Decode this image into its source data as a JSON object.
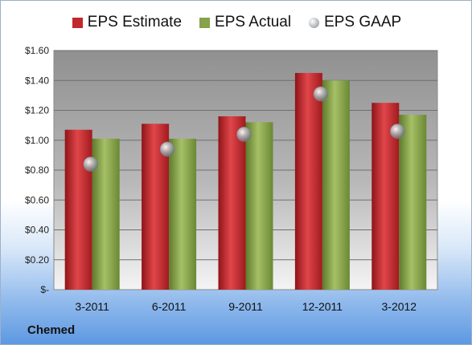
{
  "chart_data": {
    "type": "bar",
    "categories": [
      "3-2011",
      "6-2011",
      "9-2011",
      "12-2011",
      "3-2012"
    ],
    "series": [
      {
        "name": "EPS Estimate",
        "kind": "bar",
        "color": "#c0282c",
        "values": [
          1.07,
          1.11,
          1.16,
          1.45,
          1.25
        ]
      },
      {
        "name": "EPS Actual",
        "kind": "bar",
        "color": "#86a24a",
        "values": [
          1.01,
          1.01,
          1.12,
          1.4,
          1.17
        ]
      },
      {
        "name": "EPS GAAP",
        "kind": "point",
        "color": "#a8acb0",
        "values": [
          0.84,
          0.94,
          1.04,
          1.31,
          1.06
        ]
      }
    ],
    "y_ticks": [
      "$-",
      "$0.20",
      "$0.40",
      "$0.60",
      "$0.80",
      "$1.00",
      "$1.20",
      "$1.40",
      "$1.60"
    ],
    "ylim": [
      0,
      1.6
    ],
    "grid": true,
    "legend_position": "top"
  },
  "company_label": "Chemed"
}
